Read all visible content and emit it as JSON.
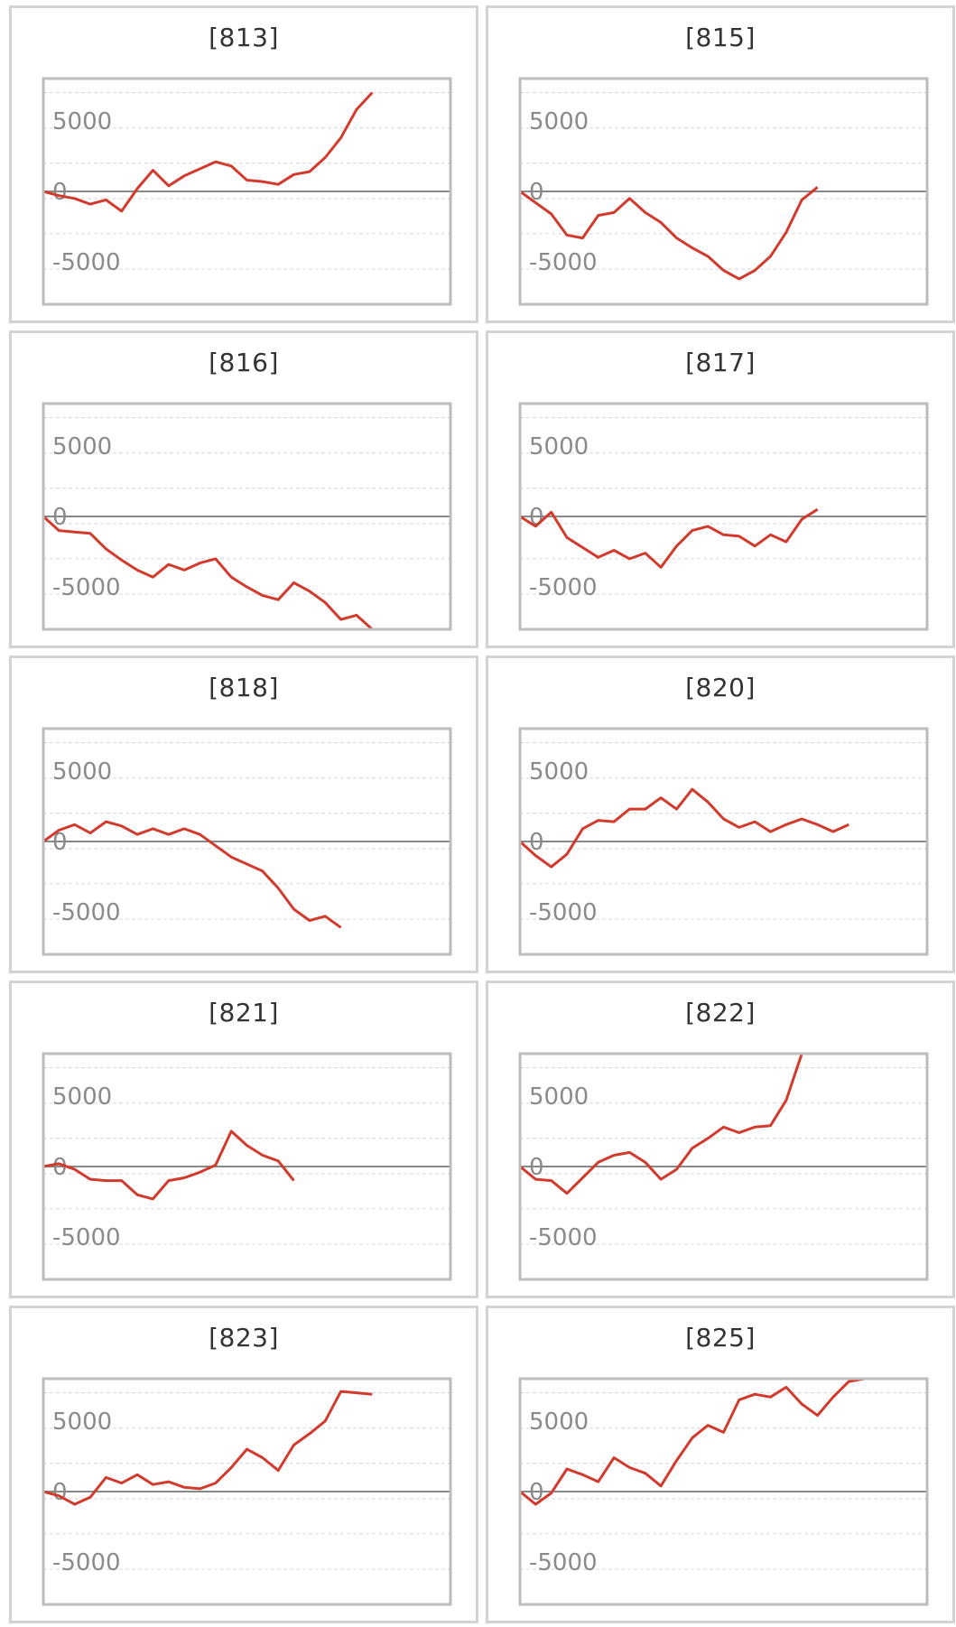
{
  "colors": {
    "line": "#d13b2d",
    "zero_line": "#888888",
    "grid": "#d6d6d6",
    "frame": "#bdbdbd",
    "tick_text": "#8a8a8a",
    "title_text": "#333333"
  },
  "chart_data": [
    {
      "type": "line",
      "title": "[813]",
      "xlim": [
        0,
        26
      ],
      "ylim": [
        -8000,
        8000
      ],
      "yticks": [
        5000,
        0,
        -5000
      ],
      "grid": true,
      "values": [
        0,
        -300,
        -500,
        -900,
        -600,
        -1400,
        200,
        1500,
        400,
        1100,
        1600,
        2100,
        1800,
        800,
        700,
        500,
        1200,
        1400,
        2400,
        3800,
        5800,
        7000
      ]
    },
    {
      "type": "line",
      "title": "[815]",
      "xlim": [
        0,
        26
      ],
      "ylim": [
        -8000,
        8000
      ],
      "yticks": [
        5000,
        0,
        -5000
      ],
      "grid": true,
      "values": [
        0,
        -800,
        -1600,
        -3100,
        -3300,
        -1700,
        -1500,
        -500,
        -1500,
        -2200,
        -3300,
        -4000,
        -4600,
        -5600,
        -6200,
        -5600,
        -4600,
        -2900,
        -600,
        300
      ]
    },
    {
      "type": "line",
      "title": "[816]",
      "xlim": [
        0,
        26
      ],
      "ylim": [
        -8000,
        8000
      ],
      "yticks": [
        5000,
        0,
        -5000
      ],
      "grid": true,
      "values": [
        0,
        -1000,
        -1100,
        -1200,
        -2300,
        -3100,
        -3800,
        -4300,
        -3400,
        -3800,
        -3300,
        -3000,
        -4300,
        -5000,
        -5600,
        -5900,
        -4700,
        -5300,
        -6100,
        -7300,
        -7000,
        -8000
      ]
    },
    {
      "type": "line",
      "title": "[817]",
      "xlim": [
        0,
        26
      ],
      "ylim": [
        -8000,
        8000
      ],
      "yticks": [
        5000,
        0,
        -5000
      ],
      "grid": true,
      "values": [
        0,
        -700,
        300,
        -1500,
        -2200,
        -2900,
        -2400,
        -3000,
        -2600,
        -3600,
        -2100,
        -1000,
        -700,
        -1300,
        -1400,
        -2100,
        -1300,
        -1800,
        -200,
        500
      ]
    },
    {
      "type": "line",
      "title": "[818]",
      "xlim": [
        0,
        26
      ],
      "ylim": [
        -8000,
        8000
      ],
      "yticks": [
        5000,
        0,
        -5000
      ],
      "grid": true,
      "values": [
        0,
        800,
        1200,
        600,
        1400,
        1100,
        500,
        900,
        500,
        900,
        500,
        -300,
        -1100,
        -1600,
        -2100,
        -3300,
        -4800,
        -5600,
        -5300,
        -6100
      ]
    },
    {
      "type": "line",
      "title": "[820]",
      "xlim": [
        0,
        26
      ],
      "ylim": [
        -8000,
        8000
      ],
      "yticks": [
        5000,
        0,
        -5000
      ],
      "grid": true,
      "values": [
        0,
        -1000,
        -1800,
        -900,
        900,
        1500,
        1400,
        2300,
        2300,
        3100,
        2300,
        3700,
        2800,
        1600,
        1000,
        1400,
        700,
        1200,
        1600,
        1200,
        700,
        1200
      ]
    },
    {
      "type": "line",
      "title": "[821]",
      "xlim": [
        0,
        26
      ],
      "ylim": [
        -8000,
        8000
      ],
      "yticks": [
        5000,
        0,
        -5000
      ],
      "grid": true,
      "values": [
        0,
        200,
        -200,
        -900,
        -1000,
        -1000,
        -2000,
        -2300,
        -1000,
        -800,
        -400,
        100,
        2500,
        1500,
        800,
        400,
        -1000
      ]
    },
    {
      "type": "line",
      "title": "[822]",
      "xlim": [
        0,
        26
      ],
      "ylim": [
        -8000,
        8000
      ],
      "yticks": [
        5000,
        0,
        -5000
      ],
      "grid": true,
      "values": [
        0,
        -900,
        -1000,
        -1900,
        -800,
        300,
        800,
        1000,
        300,
        -900,
        -200,
        1300,
        2000,
        2800,
        2400,
        2800,
        2900,
        4700,
        8000,
        8000,
        8000
      ]
    },
    {
      "type": "line",
      "title": "[823]",
      "xlim": [
        0,
        26
      ],
      "ylim": [
        -8000,
        8000
      ],
      "yticks": [
        5000,
        0,
        -5000
      ],
      "grid": true,
      "values": [
        0,
        -300,
        -900,
        -400,
        1000,
        600,
        1200,
        500,
        700,
        300,
        200,
        600,
        1700,
        3000,
        2400,
        1500,
        3300,
        4100,
        5000,
        7100,
        7000,
        6900
      ]
    },
    {
      "type": "line",
      "title": "[825]",
      "xlim": [
        0,
        26
      ],
      "ylim": [
        -8000,
        8000
      ],
      "yticks": [
        5000,
        0,
        -5000
      ],
      "grid": true,
      "values": [
        0,
        -900,
        -100,
        1600,
        1200,
        700,
        2400,
        1700,
        1300,
        400,
        2200,
        3800,
        4700,
        4200,
        6500,
        6900,
        6700,
        7400,
        6200,
        5400,
        6700,
        7800,
        8000
      ]
    }
  ]
}
